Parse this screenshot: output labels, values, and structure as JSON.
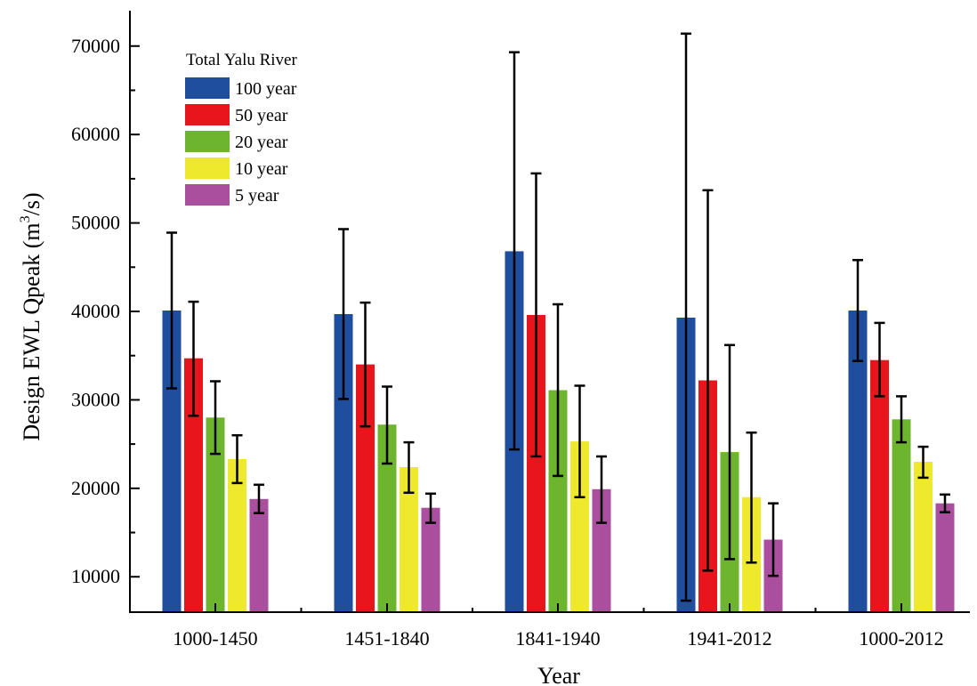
{
  "chart_data": {
    "type": "bar",
    "xlabel": "Year",
    "ylabel": "Design EWL Qpeak (m",
    "ylabel_sup": "3",
    "ylabel_tail": "/s)",
    "ylim": [
      6000,
      74000
    ],
    "yticks": [
      10000,
      20000,
      30000,
      40000,
      50000,
      60000,
      70000
    ],
    "ytick_labels": [
      "10000",
      "20000",
      "30000",
      "40000",
      "50000",
      "60000",
      "70000"
    ],
    "categories": [
      "1000-1450",
      "1451-1840",
      "1841-1940",
      "1941-2012",
      "1000-2012"
    ],
    "legend_title": "Total Yalu River",
    "legend_position": "top-left",
    "grid": false,
    "error_bars": true,
    "series": [
      {
        "name": "100 year",
        "color": "#1f4e9f",
        "values": [
          40100,
          39700,
          46800,
          39300,
          40100
        ],
        "err_low": [
          31300,
          30100,
          24400,
          7300,
          34400
        ],
        "err_high": [
          48900,
          49300,
          69300,
          71400,
          45800
        ]
      },
      {
        "name": "50 year",
        "color": "#e8161c",
        "values": [
          34700,
          34000,
          39600,
          32200,
          34500
        ],
        "err_low": [
          28200,
          27000,
          23600,
          10700,
          30400
        ],
        "err_high": [
          41100,
          41000,
          55600,
          53700,
          38700
        ]
      },
      {
        "name": "20 year",
        "color": "#6db52f",
        "values": [
          28000,
          27200,
          31100,
          24100,
          27800
        ],
        "err_low": [
          23900,
          22800,
          21400,
          12000,
          25200
        ],
        "err_high": [
          32100,
          31500,
          40800,
          36200,
          30400
        ]
      },
      {
        "name": "10 year",
        "color": "#efe92d",
        "values": [
          23300,
          22400,
          25300,
          19000,
          23000
        ],
        "err_low": [
          20600,
          19500,
          19000,
          11600,
          21200
        ],
        "err_high": [
          26000,
          25200,
          31600,
          26300,
          24700
        ]
      },
      {
        "name": "5 year",
        "color": "#a94f9d",
        "values": [
          18800,
          17800,
          19900,
          14200,
          18300
        ],
        "err_low": [
          17200,
          16100,
          16100,
          10100,
          17300
        ],
        "err_high": [
          20400,
          19400,
          23600,
          18300,
          19300
        ]
      }
    ]
  }
}
